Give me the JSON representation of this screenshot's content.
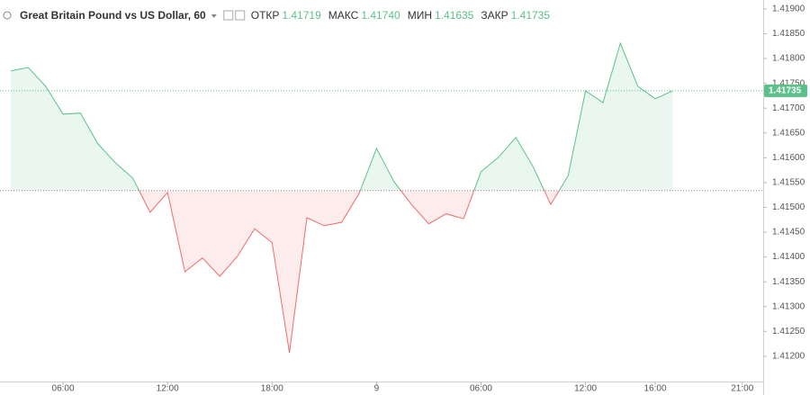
{
  "chart_data": {
    "type": "baseline",
    "title": "Great Britain Pound vs US Dollar, 60",
    "ohlc": [
      {
        "name": "ОТКР",
        "value": "1.41719"
      },
      {
        "name": "МАКС",
        "value": "1.41740"
      },
      {
        "name": "МИН",
        "value": "1.41635"
      },
      {
        "name": "ЗАКР",
        "value": "1.41735"
      }
    ],
    "values": [
      1.41775,
      1.41782,
      1.41744,
      1.41688,
      1.4169,
      1.41628,
      1.4159,
      1.41559,
      1.4149,
      1.4153,
      1.4137,
      1.41398,
      1.41361,
      1.41401,
      1.41457,
      1.41429,
      1.41207,
      1.41479,
      1.41463,
      1.4147,
      1.41528,
      1.41619,
      1.41552,
      1.41506,
      1.41467,
      1.41487,
      1.41477,
      1.41572,
      1.41601,
      1.41641,
      1.41581,
      1.41506,
      1.41564,
      1.41735,
      1.41711,
      1.41831,
      1.41744,
      1.41719,
      1.41735
    ],
    "base_value": 1.41534,
    "last_price": {
      "value": 1.41735,
      "label": "1.41735"
    },
    "up_color": "#5cc08a",
    "down_color": "#ef6b6b",
    "xlim": [
      -0.62,
      43.2
    ],
    "xticks": [
      {
        "value": 3,
        "label": "06:00"
      },
      {
        "value": 9,
        "label": "12:00"
      },
      {
        "value": 15,
        "label": "18:00"
      },
      {
        "value": 21,
        "label": "9"
      },
      {
        "value": 27,
        "label": "06:00"
      },
      {
        "value": 33,
        "label": "12:00"
      },
      {
        "value": 37,
        "label": "16:00"
      },
      {
        "value": 42,
        "label": "21:00"
      }
    ],
    "ylim": [
      1.41149,
      1.41918
    ],
    "yticks": [
      {
        "value": 1.412,
        "label": "1.41200"
      },
      {
        "value": 1.4125,
        "label": "1.41250"
      },
      {
        "value": 1.413,
        "label": "1.41300"
      },
      {
        "value": 1.4135,
        "label": "1.41350"
      },
      {
        "value": 1.414,
        "label": "1.41400"
      },
      {
        "value": 1.4145,
        "label": "1.41450"
      },
      {
        "value": 1.415,
        "label": "1.41500"
      },
      {
        "value": 1.4155,
        "label": "1.41550"
      },
      {
        "value": 1.416,
        "label": "1.41600"
      },
      {
        "value": 1.4165,
        "label": "1.41650"
      },
      {
        "value": 1.417,
        "label": "1.41700"
      },
      {
        "value": 1.4175,
        "label": "1.41750"
      },
      {
        "value": 1.418,
        "label": "1.41800"
      },
      {
        "value": 1.4185,
        "label": "1.41850"
      },
      {
        "value": 1.419,
        "label": "1.41900"
      }
    ]
  }
}
